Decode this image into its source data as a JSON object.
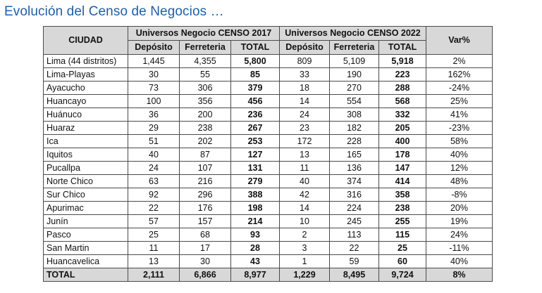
{
  "title": "Evolución del Censo de Negocios …",
  "headers": {
    "ciudad": "CIUDAD",
    "group2017": "Universos Negocio  CENSO 2017",
    "group2022": "Universos Negocio  CENSO 2022",
    "var": "Var%",
    "deposito": "Depósito",
    "ferreteria": "Ferreteria",
    "total": "TOTAL"
  },
  "rows": [
    {
      "city": "Lima (44 distritos)",
      "d17": "1,445",
      "f17": "4,355",
      "t17": "5,800",
      "d22": "809",
      "f22": "5,109",
      "t22": "5,918",
      "var": "2%"
    },
    {
      "city": "Lima-Playas",
      "d17": "30",
      "f17": "55",
      "t17": "85",
      "d22": "33",
      "f22": "190",
      "t22": "223",
      "var": "162%"
    },
    {
      "city": "Ayacucho",
      "d17": "73",
      "f17": "306",
      "t17": "379",
      "d22": "18",
      "f22": "270",
      "t22": "288",
      "var": "-24%"
    },
    {
      "city": "Huancayo",
      "d17": "100",
      "f17": "356",
      "t17": "456",
      "d22": "14",
      "f22": "554",
      "t22": "568",
      "var": "25%"
    },
    {
      "city": "Huánuco",
      "d17": "36",
      "f17": "200",
      "t17": "236",
      "d22": "24",
      "f22": "308",
      "t22": "332",
      "var": "41%"
    },
    {
      "city": "Huaraz",
      "d17": "29",
      "f17": "238",
      "t17": "267",
      "d22": "23",
      "f22": "182",
      "t22": "205",
      "var": "-23%"
    },
    {
      "city": "Ica",
      "d17": "51",
      "f17": "202",
      "t17": "253",
      "d22": "172",
      "f22": "228",
      "t22": "400",
      "var": "58%"
    },
    {
      "city": "Iquitos",
      "d17": "40",
      "f17": "87",
      "t17": "127",
      "d22": "13",
      "f22": "165",
      "t22": "178",
      "var": "40%"
    },
    {
      "city": "Pucallpa",
      "d17": "24",
      "f17": "107",
      "t17": "131",
      "d22": "11",
      "f22": "136",
      "t22": "147",
      "var": "12%"
    },
    {
      "city": "Norte Chico",
      "d17": "63",
      "f17": "216",
      "t17": "279",
      "d22": "40",
      "f22": "374",
      "t22": "414",
      "var": "48%"
    },
    {
      "city": "Sur Chico",
      "d17": "92",
      "f17": "296",
      "t17": "388",
      "d22": "42",
      "f22": "316",
      "t22": "358",
      "var": "-8%"
    },
    {
      "city": "Apurimac",
      "d17": "22",
      "f17": "176",
      "t17": "198",
      "d22": "14",
      "f22": "224",
      "t22": "238",
      "var": "20%"
    },
    {
      "city": "Junín",
      "d17": "57",
      "f17": "157",
      "t17": "214",
      "d22": "10",
      "f22": "245",
      "t22": "255",
      "var": "19%"
    },
    {
      "city": "Pasco",
      "d17": "25",
      "f17": "68",
      "t17": "93",
      "d22": "2",
      "f22": "113",
      "t22": "115",
      "var": "24%"
    },
    {
      "city": "San Martin",
      "d17": "11",
      "f17": "17",
      "t17": "28",
      "d22": "3",
      "f22": "22",
      "t22": "25",
      "var": "-11%"
    },
    {
      "city": "Huancavelica",
      "d17": "13",
      "f17": "30",
      "t17": "43",
      "d22": "1",
      "f22": "59",
      "t22": "60",
      "var": "40%"
    }
  ],
  "total_row": {
    "city": "TOTAL",
    "d17": "2,111",
    "f17": "6,866",
    "t17": "8,977",
    "d22": "1,229",
    "f22": "8,495",
    "t22": "9,724",
    "var": "8%"
  }
}
